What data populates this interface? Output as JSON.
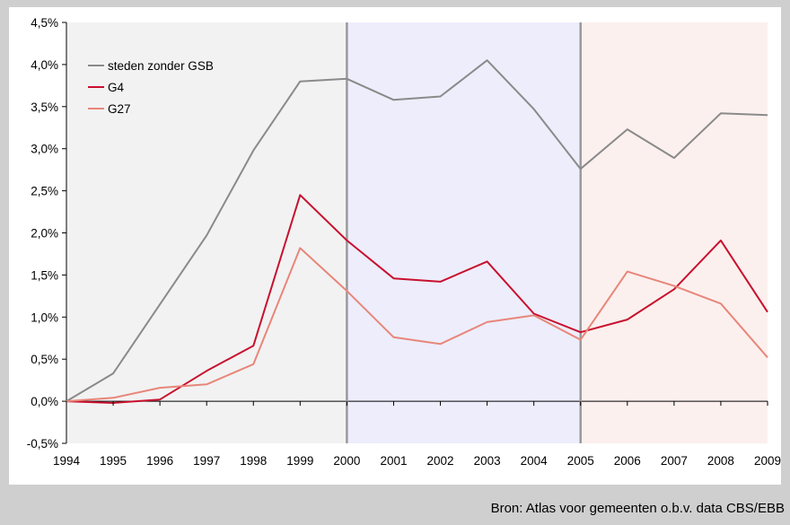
{
  "chart_data": {
    "type": "line",
    "x": [
      1994,
      1995,
      1996,
      1997,
      1998,
      1999,
      2000,
      2001,
      2002,
      2003,
      2004,
      2005,
      2006,
      2007,
      2008,
      2009
    ],
    "xticklabels": [
      "1994",
      "1995",
      "1996",
      "1997",
      "1998",
      "1999",
      "2000",
      "2001",
      "2002",
      "2003",
      "2004",
      "2005",
      "2006",
      "2007",
      "2008",
      "2009"
    ],
    "ylim": [
      -0.5,
      4.5
    ],
    "yticks": [
      -0.5,
      0.0,
      0.5,
      1.0,
      1.5,
      2.0,
      2.5,
      3.0,
      3.5,
      4.0,
      4.5
    ],
    "yticklabels": [
      "-0,5%",
      "0,0%",
      "0,5%",
      "1,0%",
      "1,5%",
      "2,0%",
      "2,5%",
      "3,0%",
      "3,5%",
      "4,0%",
      "4,5%"
    ],
    "grid": false,
    "legend_position": "top-left",
    "shaded_periods": [
      {
        "from": 1994,
        "to": 2000,
        "color": "#f2f2f2"
      },
      {
        "from": 2000,
        "to": 2005,
        "color": "#eeedfb"
      },
      {
        "from": 2005,
        "to": 2009,
        "color": "#fbf0ee"
      }
    ],
    "period_dividers": [
      2000,
      2005
    ],
    "series": [
      {
        "name": "steden zonder GSB",
        "color": "#8a8a8a",
        "values": [
          0.0,
          0.33,
          1.15,
          1.97,
          2.98,
          3.8,
          3.83,
          3.58,
          3.62,
          4.05,
          3.47,
          2.76,
          3.23,
          2.89,
          3.42,
          3.4
        ]
      },
      {
        "name": "G4",
        "color": "#c8102e",
        "values": [
          0.0,
          -0.02,
          0.02,
          0.36,
          0.66,
          2.45,
          1.91,
          1.46,
          1.42,
          1.66,
          1.04,
          0.82,
          0.97,
          1.33,
          1.91,
          1.06
        ]
      },
      {
        "name": "G27",
        "color": "#e8867a",
        "values": [
          0.0,
          0.04,
          0.16,
          0.2,
          0.44,
          1.82,
          1.31,
          0.76,
          0.68,
          0.94,
          1.02,
          0.73,
          1.54,
          1.37,
          1.16,
          0.52
        ]
      }
    ]
  },
  "source_text": "Bron: Atlas voor gemeenten o.b.v. data CBS/EBB"
}
